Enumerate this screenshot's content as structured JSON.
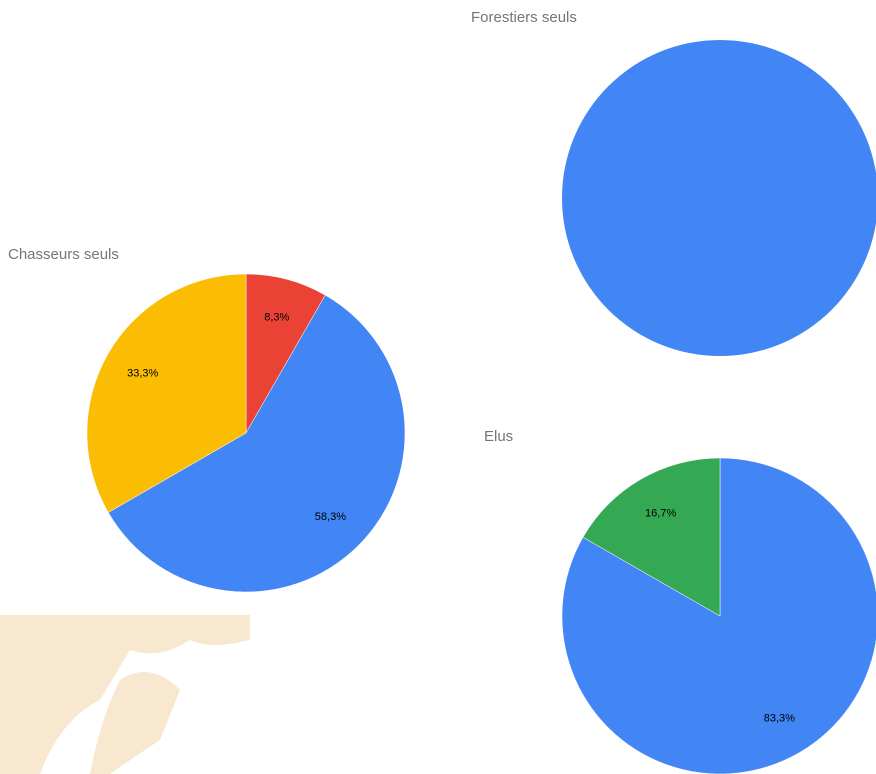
{
  "chart_data": [
    {
      "type": "pie",
      "title": "Chasseurs seuls",
      "values": [
        8.3,
        58.3,
        33.3
      ],
      "value_labels": [
        "8,3%",
        "58,3%",
        "33,3%"
      ],
      "colors": [
        "#ea4335",
        "#4285f4",
        "#fbbc04"
      ]
    },
    {
      "type": "pie",
      "title": "Forestiers seuls",
      "values": [
        100
      ],
      "colors": [
        "#4285f4"
      ]
    },
    {
      "type": "pie",
      "title": "Elus",
      "values": [
        83.3,
        16.7
      ],
      "value_labels": [
        "83,3%",
        "16,7%"
      ],
      "colors": [
        "#4285f4",
        "#34a853"
      ]
    }
  ]
}
